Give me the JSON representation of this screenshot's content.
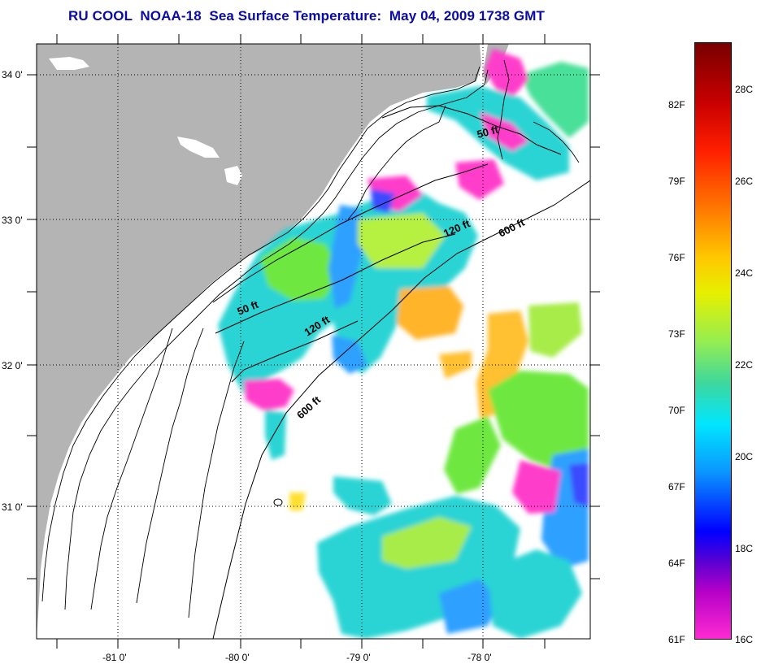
{
  "title": "RU COOL  NOAA-18  Sea Surface Temperature:  May 04, 2009 1738 GMT",
  "map": {
    "lat_labels": [
      "34 0'",
      "33 0'",
      "32 0'",
      "31 0'"
    ],
    "lon_labels": [
      "-81 0'",
      "-80 0'",
      "-79 0'",
      "-78 0'"
    ],
    "contour_labels": [
      "50 ft",
      "120 ft",
      "600 ft",
      "50 ft",
      "120 ft",
      "600 ft"
    ],
    "land_color": "#b4b4b4",
    "gridlines": "dotted"
  },
  "colorbar": {
    "fahrenheit_labels": [
      "82F",
      "79F",
      "76F",
      "73F",
      "70F",
      "67F",
      "64F",
      "61F"
    ],
    "celsius_labels": [
      "28C",
      "26C",
      "24C",
      "22C",
      "20C",
      "18C",
      "16C"
    ],
    "range_celsius": [
      16,
      29
    ]
  }
}
